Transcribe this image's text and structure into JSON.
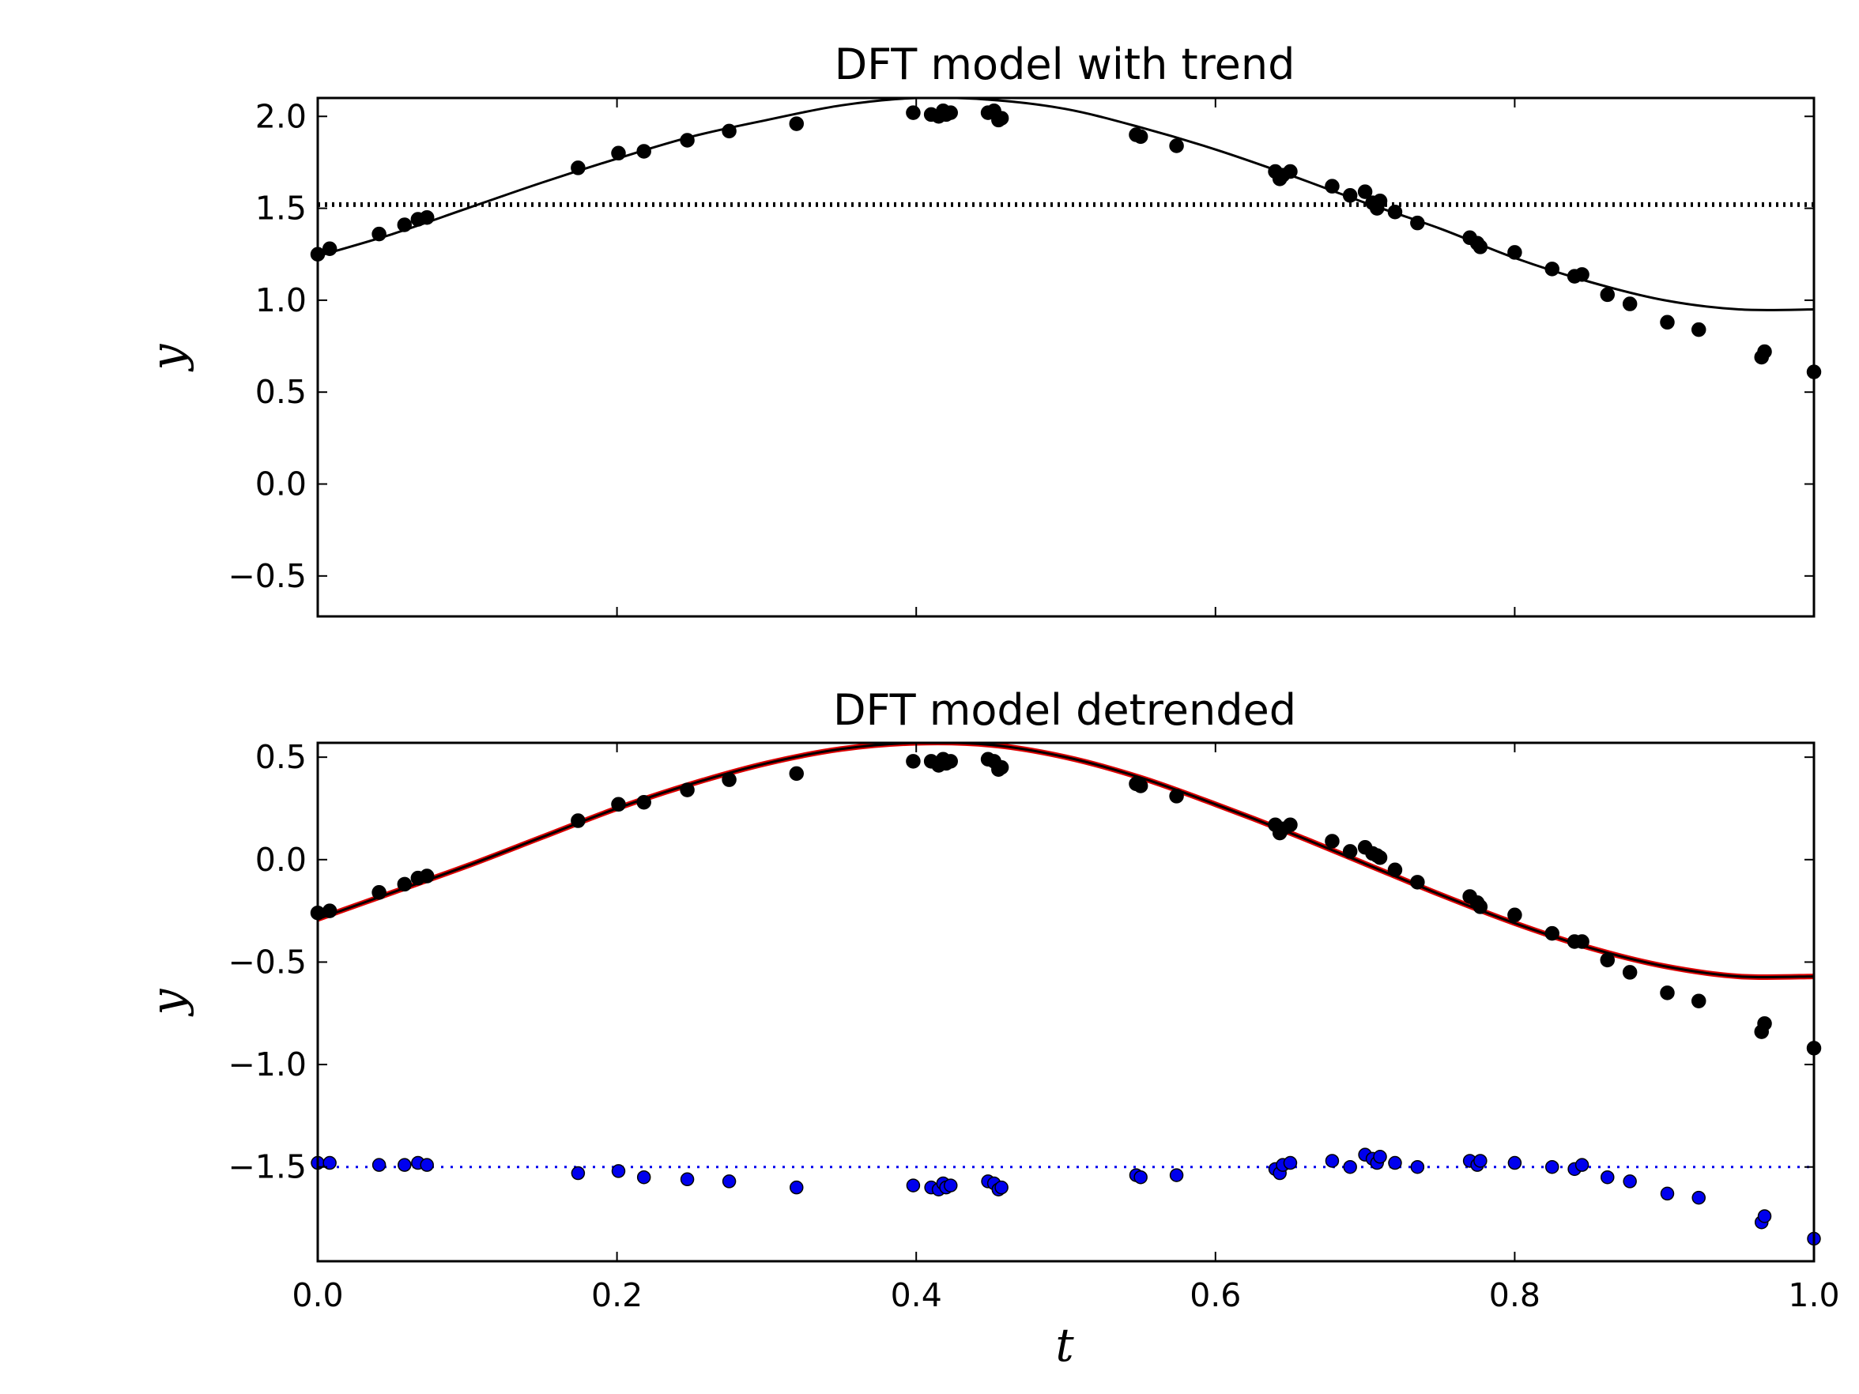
{
  "chart_data": [
    {
      "type": "scatter",
      "title": "DFT model with trend",
      "xlabel": "",
      "ylabel": "y",
      "xlim": [
        0.0,
        1.0
      ],
      "ylim": [
        -0.72,
        2.1
      ],
      "grid": false,
      "xticks": [
        0.0,
        0.2,
        0.4,
        0.6,
        0.8,
        1.0
      ],
      "xtick_labels_visible": false,
      "yticks": [
        -0.5,
        0.0,
        0.5,
        1.0,
        1.5,
        2.0
      ],
      "ytick_labels": [
        "−0.5",
        "0.0",
        "0.5",
        "1.0",
        "1.5",
        "2.0"
      ],
      "series": [
        {
          "name": "data",
          "kind": "points",
          "color": "#000000",
          "x": [
            0.0,
            0.008,
            0.041,
            0.058,
            0.067,
            0.073,
            0.174,
            0.201,
            0.218,
            0.247,
            0.275,
            0.32,
            0.398,
            0.41,
            0.415,
            0.418,
            0.42,
            0.423,
            0.448,
            0.452,
            0.455,
            0.457,
            0.547,
            0.55,
            0.574,
            0.64,
            0.643,
            0.645,
            0.65,
            0.678,
            0.69,
            0.7,
            0.705,
            0.708,
            0.71,
            0.72,
            0.735,
            0.77,
            0.775,
            0.777,
            0.8,
            0.825,
            0.84,
            0.845,
            0.862,
            0.877,
            0.902,
            0.923,
            0.965,
            0.967,
            1.0
          ],
          "y": [
            1.25,
            1.28,
            1.36,
            1.41,
            1.44,
            1.45,
            1.72,
            1.8,
            1.81,
            1.87,
            1.92,
            1.96,
            2.02,
            2.01,
            2.0,
            2.03,
            2.01,
            2.02,
            2.02,
            2.03,
            1.98,
            1.99,
            1.9,
            1.89,
            1.84,
            1.7,
            1.66,
            1.68,
            1.7,
            1.62,
            1.57,
            1.59,
            1.53,
            1.5,
            1.54,
            1.48,
            1.42,
            1.34,
            1.31,
            1.29,
            1.26,
            1.17,
            1.13,
            1.14,
            1.03,
            0.98,
            0.88,
            0.84,
            0.69,
            0.72,
            0.61
          ]
        },
        {
          "name": "model with trend",
          "kind": "line",
          "color": "#000000",
          "x": [
            0.0,
            0.05,
            0.1,
            0.15,
            0.2,
            0.25,
            0.3,
            0.35,
            0.4,
            0.45,
            0.5,
            0.55,
            0.6,
            0.65,
            0.7,
            0.75,
            0.8,
            0.85,
            0.9,
            0.95,
            1.0
          ],
          "y": [
            1.24,
            1.36,
            1.5,
            1.64,
            1.77,
            1.89,
            1.98,
            2.06,
            2.1,
            2.09,
            2.04,
            1.94,
            1.82,
            1.68,
            1.53,
            1.39,
            1.23,
            1.1,
            1.0,
            0.95,
            0.95
          ]
        },
        {
          "name": "trend",
          "kind": "line",
          "style": "dotted",
          "color": "#000000",
          "x": [
            0.0,
            1.0
          ],
          "y": [
            1.52,
            1.52
          ]
        }
      ]
    },
    {
      "type": "scatter",
      "title": "DFT model detrended",
      "xlabel": "t",
      "ylabel": "y",
      "xlim": [
        0.0,
        1.0
      ],
      "ylim": [
        -1.96,
        0.57
      ],
      "grid": false,
      "xticks": [
        0.0,
        0.2,
        0.4,
        0.6,
        0.8,
        1.0
      ],
      "xtick_labels": [
        "0.0",
        "0.2",
        "0.4",
        "0.6",
        "0.8",
        "1.0"
      ],
      "yticks": [
        -1.5,
        -1.0,
        -0.5,
        0.0,
        0.5
      ],
      "ytick_labels": [
        "−1.5",
        "−1.0",
        "−0.5",
        "0.0",
        "0.5"
      ],
      "series": [
        {
          "name": "detrended data",
          "kind": "points",
          "color": "#000000",
          "x": [
            0.0,
            0.008,
            0.041,
            0.058,
            0.067,
            0.073,
            0.174,
            0.201,
            0.218,
            0.247,
            0.275,
            0.32,
            0.398,
            0.41,
            0.415,
            0.418,
            0.42,
            0.423,
            0.448,
            0.452,
            0.455,
            0.457,
            0.547,
            0.55,
            0.574,
            0.64,
            0.643,
            0.645,
            0.65,
            0.678,
            0.69,
            0.7,
            0.705,
            0.708,
            0.71,
            0.72,
            0.735,
            0.77,
            0.775,
            0.777,
            0.8,
            0.825,
            0.84,
            0.845,
            0.862,
            0.877,
            0.902,
            0.923,
            0.965,
            0.967,
            1.0
          ],
          "y": [
            -0.26,
            -0.25,
            -0.16,
            -0.12,
            -0.09,
            -0.08,
            0.19,
            0.27,
            0.28,
            0.34,
            0.39,
            0.42,
            0.48,
            0.48,
            0.46,
            0.49,
            0.47,
            0.48,
            0.49,
            0.48,
            0.44,
            0.45,
            0.37,
            0.36,
            0.31,
            0.17,
            0.13,
            0.15,
            0.17,
            0.09,
            0.04,
            0.06,
            0.03,
            0.02,
            0.01,
            -0.05,
            -0.11,
            -0.18,
            -0.21,
            -0.23,
            -0.27,
            -0.36,
            -0.4,
            -0.4,
            -0.49,
            -0.55,
            -0.65,
            -0.69,
            -0.84,
            -0.8,
            -0.92
          ]
        },
        {
          "name": "model detrended",
          "kind": "line",
          "color": "#000000",
          "x": [
            0.0,
            0.05,
            0.1,
            0.15,
            0.2,
            0.25,
            0.3,
            0.35,
            0.4,
            0.45,
            0.5,
            0.55,
            0.6,
            0.65,
            0.7,
            0.75,
            0.8,
            0.85,
            0.9,
            0.95,
            1.0
          ],
          "y": [
            -0.29,
            -0.16,
            -0.03,
            0.11,
            0.25,
            0.37,
            0.47,
            0.54,
            0.57,
            0.56,
            0.5,
            0.4,
            0.27,
            0.13,
            -0.02,
            -0.17,
            -0.31,
            -0.43,
            -0.52,
            -0.57,
            -0.57
          ]
        },
        {
          "name": "model detrended (red)",
          "kind": "line",
          "color": "#dd0000",
          "x": [
            0.0,
            0.05,
            0.1,
            0.15,
            0.2,
            0.25,
            0.3,
            0.35,
            0.4,
            0.45,
            0.5,
            0.55,
            0.6,
            0.65,
            0.7,
            0.75,
            0.8,
            0.85,
            0.9,
            0.95,
            1.0
          ],
          "y": [
            -0.29,
            -0.16,
            -0.03,
            0.11,
            0.25,
            0.37,
            0.47,
            0.54,
            0.57,
            0.56,
            0.5,
            0.4,
            0.27,
            0.13,
            -0.02,
            -0.17,
            -0.31,
            -0.43,
            -0.52,
            -0.57,
            -0.57
          ]
        },
        {
          "name": "residuals",
          "kind": "points",
          "color": "#0000ee",
          "x": [
            0.0,
            0.008,
            0.041,
            0.058,
            0.067,
            0.073,
            0.174,
            0.201,
            0.218,
            0.247,
            0.275,
            0.32,
            0.398,
            0.41,
            0.415,
            0.418,
            0.42,
            0.423,
            0.448,
            0.452,
            0.455,
            0.457,
            0.547,
            0.55,
            0.574,
            0.64,
            0.643,
            0.645,
            0.65,
            0.678,
            0.69,
            0.7,
            0.705,
            0.708,
            0.71,
            0.72,
            0.735,
            0.77,
            0.775,
            0.777,
            0.8,
            0.825,
            0.84,
            0.845,
            0.862,
            0.877,
            0.902,
            0.923,
            0.965,
            0.967,
            1.0
          ],
          "y": [
            -1.48,
            -1.48,
            -1.49,
            -1.49,
            -1.48,
            -1.49,
            -1.53,
            -1.52,
            -1.55,
            -1.56,
            -1.57,
            -1.6,
            -1.59,
            -1.6,
            -1.61,
            -1.58,
            -1.6,
            -1.59,
            -1.57,
            -1.58,
            -1.61,
            -1.6,
            -1.54,
            -1.55,
            -1.54,
            -1.51,
            -1.53,
            -1.49,
            -1.48,
            -1.47,
            -1.5,
            -1.44,
            -1.46,
            -1.48,
            -1.45,
            -1.48,
            -1.5,
            -1.47,
            -1.49,
            -1.47,
            -1.48,
            -1.5,
            -1.51,
            -1.49,
            -1.55,
            -1.57,
            -1.63,
            -1.65,
            -1.77,
            -1.74,
            -1.85
          ]
        },
        {
          "name": "residual mean",
          "kind": "line",
          "style": "dotted",
          "color": "#0000ee",
          "x": [
            0.0,
            1.0
          ],
          "y": [
            -1.5,
            -1.5
          ]
        }
      ]
    }
  ]
}
